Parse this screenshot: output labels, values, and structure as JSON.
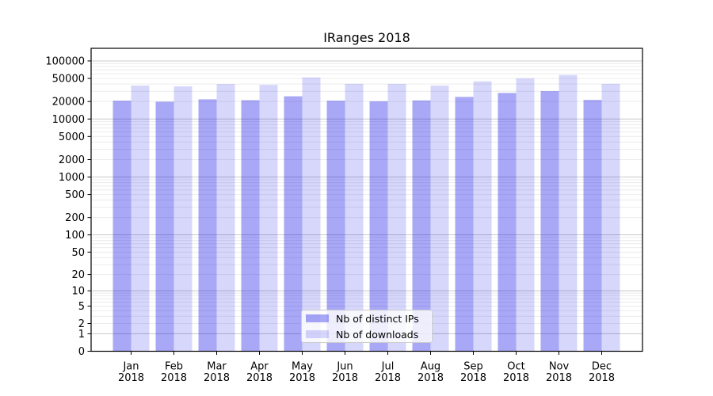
{
  "title": "IRanges 2018",
  "colors": {
    "bar_distinct_ips": "rgba(0,0,230,0.34)",
    "bar_downloads": "rgba(0,0,230,0.155)",
    "grid_major": "#c8c8c8",
    "grid_minor": "#ececec",
    "axis": "#000000",
    "text": "#000000",
    "legend_border": "#cccccc",
    "legend_background": "rgba(255,255,255,0.8)",
    "background": "#ffffff"
  },
  "chart_data": {
    "type": "bar",
    "title": "IRanges 2018",
    "categories": [
      "Jan",
      "Feb",
      "Mar",
      "Apr",
      "May",
      "Jun",
      "Jul",
      "Aug",
      "Sep",
      "Oct",
      "Nov",
      "Dec"
    ],
    "category_year": "2018",
    "series": [
      {
        "name": "Nb of distinct IPs",
        "color": "rgba(0,0,230,0.34)",
        "values": [
          20700,
          19900,
          21800,
          21100,
          24600,
          20700,
          20200,
          20900,
          24000,
          28100,
          30200,
          21300
        ]
      },
      {
        "name": "Nb of downloads",
        "color": "rgba(0,0,230,0.155)",
        "values": [
          37600,
          36500,
          40100,
          38800,
          52000,
          40400,
          40300,
          37600,
          44500,
          50100,
          57300,
          40400
        ]
      }
    ],
    "xlabel": "",
    "ylabel": "",
    "y_scale": "log10(1+y)",
    "y_ticks": [
      0,
      1,
      2,
      5,
      10,
      20,
      50,
      100,
      200,
      500,
      1000,
      2000,
      5000,
      10000,
      20000,
      50000,
      100000
    ],
    "y_max": 165000,
    "grid": "horizontal, faint log minors with darker decade lines",
    "legend_position": "lower center"
  }
}
